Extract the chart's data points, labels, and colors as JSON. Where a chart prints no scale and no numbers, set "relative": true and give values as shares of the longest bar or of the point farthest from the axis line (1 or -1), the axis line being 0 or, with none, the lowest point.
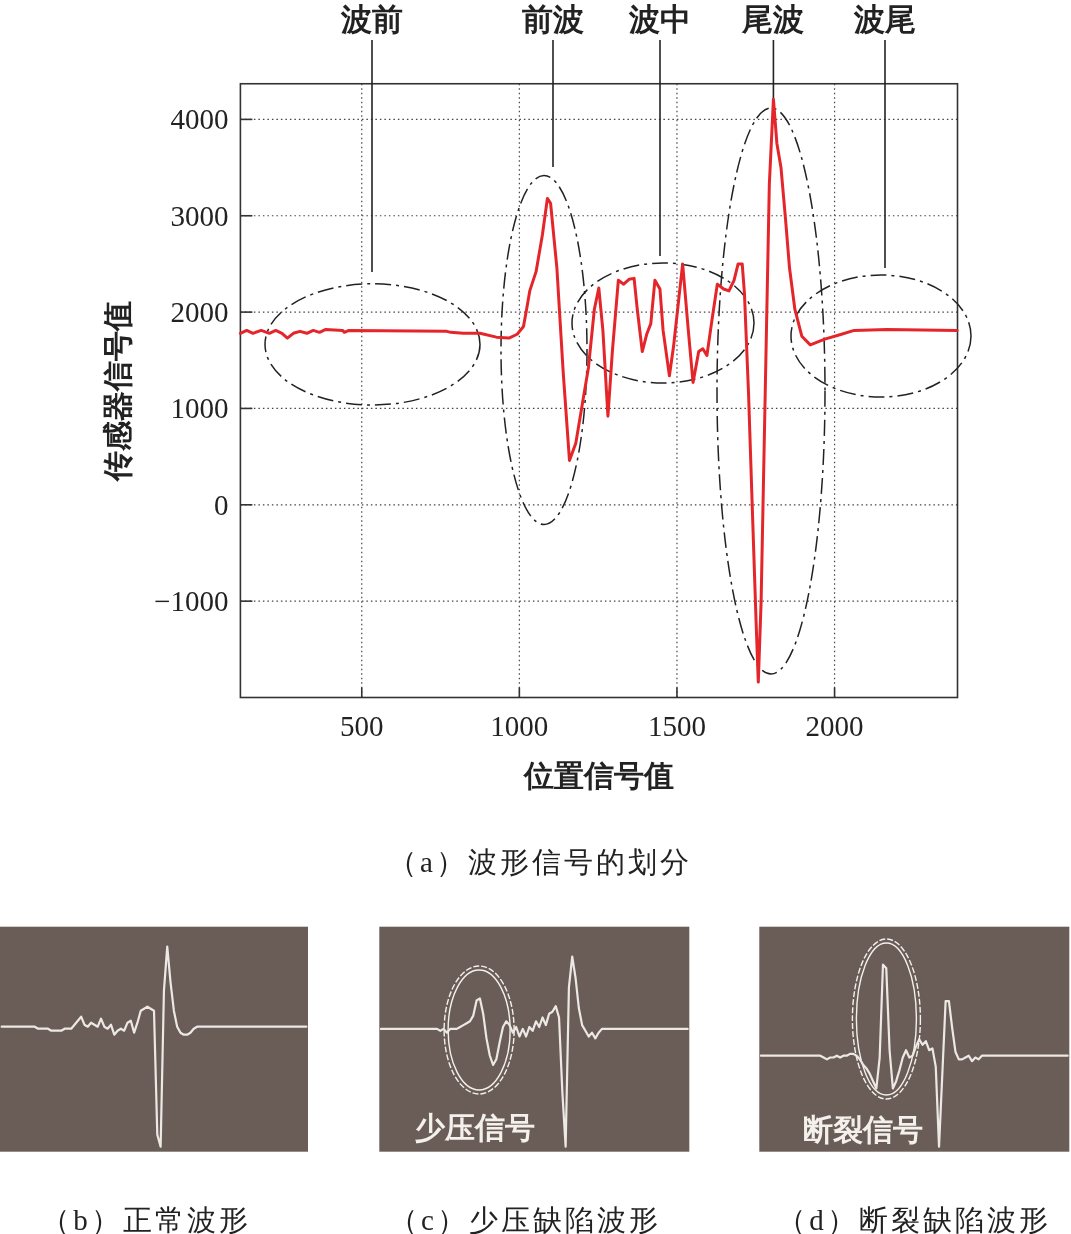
{
  "chart_data": [
    {
      "type": "line",
      "title": "（a）波形信号的划分",
      "xlabel": "位置信号值",
      "ylabel": "传感器信号值",
      "xlim": [
        115,
        2390
      ],
      "ylim": [
        -2000,
        4370
      ],
      "xticks": [
        500,
        1000,
        1500,
        2000
      ],
      "yticks": [
        {
          "value": -1000,
          "label": "−1000"
        },
        0,
        1000,
        2000,
        3000,
        4000
      ],
      "grid": true,
      "series": [
        {
          "color": "#e4262b",
          "x": [
            115,
            135,
            155,
            181,
            207,
            227,
            247,
            264,
            283,
            304,
            326,
            346,
            366,
            386,
            439,
            445,
            459,
            770,
            782,
            822,
            875,
            927,
            967,
            993,
            1013,
            1023,
            1033,
            1053,
            1073,
            1089,
            1099,
            1119,
            1139,
            1159,
            1179,
            1199,
            1219,
            1238,
            1252,
            1265,
            1281,
            1295,
            1314,
            1331,
            1348,
            1364,
            1374,
            1390,
            1404,
            1417,
            1430,
            1446,
            1456,
            1476,
            1489,
            1518,
            1536,
            1551,
            1569,
            1582,
            1595,
            1612,
            1628,
            1648,
            1665,
            1681,
            1694,
            1707,
            1714,
            1727,
            1740,
            1751,
            1758,
            1767,
            1780,
            1793,
            1806,
            1817,
            1830,
            1844,
            1857,
            1874,
            1896,
            1923,
            1969,
            2022,
            2062,
            2167,
            2389
          ],
          "values": [
            1780,
            1810,
            1780,
            1810,
            1780,
            1810,
            1780,
            1730,
            1780,
            1800,
            1780,
            1810,
            1790,
            1820,
            1810,
            1790,
            1810,
            1800,
            1790,
            1780,
            1780,
            1740,
            1730,
            1770,
            1850,
            2030,
            2220,
            2420,
            2800,
            3180,
            3130,
            2460,
            1380,
            460,
            640,
            1030,
            1420,
            2030,
            2250,
            1810,
            920,
            1590,
            2330,
            2290,
            2340,
            2350,
            2030,
            1590,
            1770,
            1880,
            2330,
            2240,
            1810,
            1340,
            1640,
            2500,
            1810,
            1270,
            1590,
            1620,
            1550,
            1940,
            2290,
            2240,
            2220,
            2330,
            2500,
            2500,
            2200,
            1160,
            -130,
            -1210,
            -1840,
            -1000,
            1160,
            3320,
            4210,
            3750,
            3500,
            2980,
            2460,
            2030,
            1750,
            1660,
            1720,
            1770,
            1810,
            1820,
            1810
          ]
        }
      ],
      "annotations": [
        "波前",
        "前波",
        "波中",
        {
          "text": "尾波",
          "x": 1806,
          "y": 4210
        },
        "波尾"
      ]
    },
    {
      "type": "line",
      "title": "（b）正常波形",
      "relative": true,
      "categories": [
        null,
        null,
        null,
        null,
        null,
        null,
        null,
        null,
        null,
        null,
        null,
        null,
        null,
        null,
        null,
        null,
        null,
        null,
        null,
        null,
        null,
        null,
        null,
        null,
        null,
        null,
        null,
        null,
        null,
        null,
        null,
        null,
        null,
        null,
        null,
        null,
        null,
        null,
        null,
        null,
        null,
        null,
        null,
        null,
        null,
        null,
        null,
        null,
        null,
        null,
        null,
        null,
        null,
        null,
        null,
        null,
        null,
        null,
        null,
        null,
        null,
        null,
        null,
        null,
        null,
        null,
        null,
        null,
        null,
        null,
        null,
        null,
        null,
        null,
        null,
        null,
        null,
        null,
        null,
        null,
        null,
        null,
        null,
        null,
        null,
        null,
        null,
        null,
        null,
        null,
        null,
        null,
        null
      ],
      "series": [
        {
          "color": "#ece8e4",
          "values": [
            0.6,
            0.6,
            0.6,
            0.6,
            0.6,
            0.6,
            0.6,
            0.6,
            0.6,
            0.6,
            0.6,
            0.59,
            0.59,
            0.59,
            0.59,
            0.58,
            0.58,
            0.58,
            0.58,
            0.59,
            0.59,
            0.59,
            0.61,
            0.63,
            0.65,
            0.61,
            0.6,
            0.62,
            0.61,
            0.6,
            0.64,
            0.6,
            0.59,
            0.61,
            0.56,
            0.58,
            0.59,
            0.58,
            0.62,
            0.63,
            0.57,
            0.62,
            0.68,
            0.69,
            0.7,
            0.69,
            0.68,
            0.06,
            0,
            0.78,
            1,
            0.82,
            0.68,
            0.6,
            0.57,
            0.56,
            0.56,
            0.57,
            0.59,
            0.6,
            0.6,
            0.6,
            0.6,
            0.6,
            0.6,
            0.6,
            0.6,
            0.6,
            0.6,
            0.6,
            0.6,
            0.6,
            0.6,
            0.6,
            0.6,
            0.6,
            0.6,
            0.6,
            0.6,
            0.6,
            0.6,
            0.6,
            0.6,
            0.6,
            0.6,
            0.6,
            0.6,
            0.6,
            0.6,
            0.6,
            0.6,
            0.6,
            0.6
          ]
        }
      ]
    },
    {
      "type": "line",
      "title": "（c）少压缺陷波形",
      "relative": true,
      "categories": [
        null,
        null,
        null,
        null,
        null,
        null,
        null,
        null,
        null,
        null,
        null,
        null,
        null,
        null,
        null,
        null,
        null,
        null,
        null,
        null,
        null,
        null,
        null,
        null,
        null,
        null,
        null,
        null,
        null,
        null,
        null,
        null,
        null,
        null,
        null,
        null,
        null,
        null,
        null,
        null,
        null,
        null,
        null,
        null,
        null,
        null,
        null,
        null,
        null,
        null,
        null,
        null,
        null,
        null,
        null,
        null,
        null,
        null,
        null,
        null,
        null,
        null,
        null,
        null,
        null,
        null,
        null,
        null,
        null,
        null,
        null,
        null,
        null,
        null,
        null,
        null,
        null,
        null,
        null,
        null,
        null,
        null,
        null,
        null,
        null,
        null,
        null,
        null,
        null,
        null,
        null,
        null,
        null,
        null
      ],
      "series": [
        {
          "color": "#ece8e4",
          "values": [
            0.62,
            0.62,
            0.62,
            0.62,
            0.62,
            0.62,
            0.62,
            0.62,
            0.62,
            0.62,
            0.62,
            0.62,
            0.62,
            0.62,
            0.62,
            0.62,
            0.62,
            0.62,
            0.61,
            0.62,
            0.6,
            0.62,
            0.62,
            0.62,
            0.63,
            0.64,
            0.65,
            0.66,
            0.69,
            0.77,
            0.78,
            0.7,
            0.57,
            0.48,
            0.43,
            0.46,
            0.55,
            0.63,
            0.66,
            0.64,
            0.6,
            0.63,
            0.58,
            0.62,
            0.58,
            0.63,
            0.61,
            0.66,
            0.63,
            0.68,
            0.64,
            0.7,
            0.71,
            0.74,
            0.68,
            0.29,
            0,
            0.84,
            1,
            0.89,
            0.73,
            0.64,
            0.61,
            0.58,
            0.6,
            0.57,
            0.6,
            0.62,
            0.62,
            0.62,
            0.62,
            0.62,
            0.62,
            0.62,
            0.62,
            0.62,
            0.62,
            0.62,
            0.62,
            0.62,
            0.62,
            0.62,
            0.62,
            0.62,
            0.62,
            0.62,
            0.62,
            0.62,
            0.62,
            0.62,
            0.62,
            0.62,
            0.62,
            0.62
          ]
        }
      ],
      "annotations": [
        "少压信号"
      ]
    },
    {
      "type": "line",
      "title": "（d）断裂缺陷波形",
      "relative": true,
      "categories": [
        null,
        null,
        null,
        null,
        null,
        null,
        null,
        null,
        null,
        null,
        null,
        null,
        null,
        null,
        null,
        null,
        null,
        null,
        null,
        null,
        null,
        null,
        null,
        null,
        null,
        null,
        null,
        null,
        null,
        null,
        null,
        null,
        null,
        null,
        null,
        null,
        null,
        null,
        null,
        null,
        null,
        null,
        null,
        null,
        null,
        null,
        null,
        null,
        null,
        null,
        null,
        null,
        null,
        null,
        null,
        null,
        null,
        null,
        null,
        null,
        null,
        null,
        null,
        null,
        null,
        null,
        null,
        null,
        null,
        null,
        null,
        null,
        null,
        null,
        null,
        null,
        null,
        null,
        null,
        null,
        null,
        null,
        null,
        null,
        null,
        null,
        null,
        null,
        null,
        null,
        null,
        null,
        null,
        null
      ],
      "series": [
        {
          "color": "#ece8e4",
          "values": [
            0.5,
            0.5,
            0.5,
            0.5,
            0.5,
            0.5,
            0.5,
            0.5,
            0.5,
            0.5,
            0.5,
            0.5,
            0.5,
            0.5,
            0.5,
            0.5,
            0.5,
            0.5,
            0.5,
            0.49,
            0.48,
            0.49,
            0.49,
            0.5,
            0.49,
            0.5,
            0.5,
            0.51,
            0.51,
            0.5,
            0.48,
            0.45,
            0.43,
            0.4,
            0.36,
            0.32,
            0.49,
            1,
            0.98,
            0.53,
            0.32,
            0.36,
            0.42,
            0.49,
            0.53,
            0.49,
            0.5,
            0.55,
            0.59,
            0.56,
            0.58,
            0.53,
            0.54,
            0.44,
            0,
            0.4,
            0.8,
            0.8,
            0.65,
            0.52,
            0.48,
            0.48,
            0.49,
            0.5,
            0.47,
            0.49,
            0.48,
            0.5,
            0.5,
            0.5,
            0.5,
            0.5,
            0.5,
            0.5,
            0.5,
            0.5,
            0.5,
            0.5,
            0.5,
            0.5,
            0.5,
            0.5,
            0.5,
            0.5,
            0.5,
            0.5,
            0.5,
            0.5,
            0.5,
            0.5,
            0.5,
            0.5,
            0.5,
            0.5
          ]
        }
      ],
      "annotations": [
        "断裂信号"
      ]
    }
  ]
}
